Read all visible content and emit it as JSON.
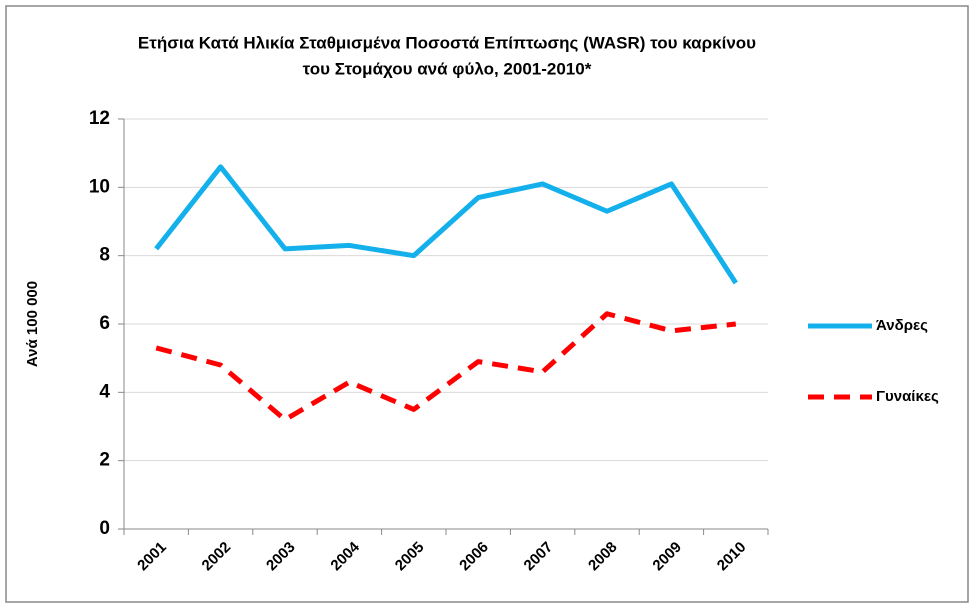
{
  "chart_data": {
    "type": "line",
    "title": "Ετήσια Κατά Ηλικία Σταθμισμένα Ποσοστά Επίπτωσης (WASR) του καρκίνου",
    "subtitle": "του Στομάχου ανά φύλο,   2001-2010*",
    "y_label": "Ανά 100 000",
    "categories": [
      "2001",
      "2002",
      "2003",
      "2004",
      "2005",
      "2006",
      "2007",
      "2008",
      "2009",
      "2010"
    ],
    "series": [
      {
        "name": "Άνδρες",
        "color": "#13b0ec",
        "dash": false,
        "values": [
          8.2,
          10.6,
          8.2,
          8.3,
          8.0,
          9.7,
          10.1,
          9.3,
          10.1,
          7.2
        ]
      },
      {
        "name": "Γυναίκες",
        "color": "#ff0000",
        "dash": true,
        "values": [
          5.3,
          4.8,
          3.2,
          4.3,
          3.5,
          4.9,
          4.6,
          6.3,
          5.8,
          6.0
        ]
      }
    ],
    "ylim": [
      0,
      12
    ],
    "yticks": [
      0,
      2,
      4,
      6,
      8,
      10,
      12
    ],
    "grid": true,
    "legend": "right"
  }
}
